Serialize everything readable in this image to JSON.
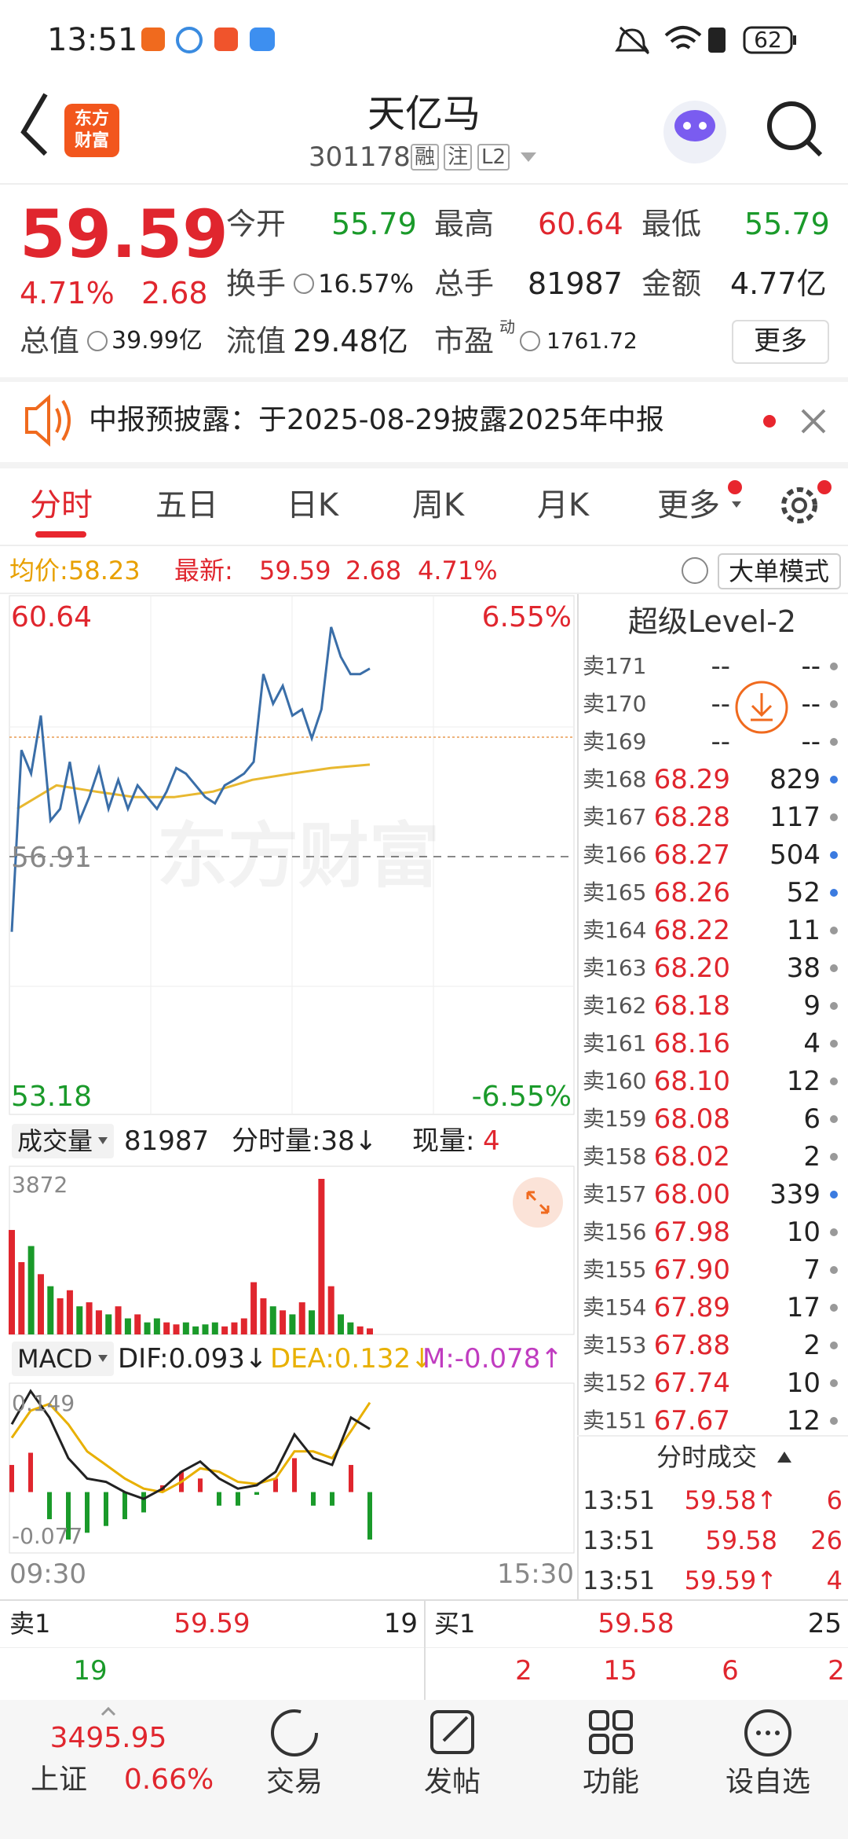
{
  "status_bar": {
    "time": "13:51",
    "battery": "62"
  },
  "header": {
    "logo": [
      "东方",
      "财富"
    ],
    "title": "天亿马",
    "code": "301178",
    "tags": [
      "融",
      "注",
      "L2"
    ]
  },
  "quote": {
    "price": "59.59",
    "change_pct": "4.71%",
    "change": "2.68",
    "fields": [
      {
        "label": "今开",
        "value": "55.79"
      },
      {
        "label": "最高",
        "value": "60.64"
      },
      {
        "label": "最低",
        "value": "55.79"
      },
      {
        "label": "换手",
        "value": "16.57%"
      },
      {
        "label": "总手",
        "value": "81987"
      },
      {
        "label": "金额",
        "value": "4.77亿"
      },
      {
        "label": "总值",
        "value": "39.99亿"
      },
      {
        "label": "流值",
        "value": "29.48亿"
      },
      {
        "label": "市盈",
        "sup": "动",
        "value": "1761.72"
      }
    ],
    "more": "更多"
  },
  "notice": {
    "text": "中报预披露：于2025-08-29披露2025年中报"
  },
  "tabs": [
    "分时",
    "五日",
    "日K",
    "周K",
    "月K",
    "更多"
  ],
  "info_bar": {
    "avg_label": "均价:",
    "avg": "58.23",
    "last_label": "最新:",
    "last": "59.59",
    "change": "2.68",
    "change_pct": "4.71%",
    "mode": "大单模式"
  },
  "intraday": {
    "ylim": [
      53.18,
      60.64
    ],
    "ref": 56.91,
    "pct_labels": [
      "-6.55%",
      "6.55%"
    ],
    "watermark": "东方财富",
    "price": [
      55.81,
      58.44,
      58.1,
      58.94,
      57.42,
      57.59,
      58.27,
      57.42,
      57.76,
      58.18,
      57.59,
      58.01,
      57.59,
      57.93,
      57.76,
      57.59,
      57.84,
      58.18,
      58.1,
      57.93,
      57.76,
      57.67,
      57.93,
      58.01,
      58.1,
      58.27,
      59.54,
      59.11,
      59.37,
      58.94,
      59.03,
      58.61,
      59.03,
      60.22,
      59.79,
      59.54,
      59.54,
      59.62
    ],
    "avg": [
      57.59,
      57.93,
      57.84,
      57.76,
      57.76,
      57.84,
      58.01,
      58.1,
      58.18,
      58.23
    ],
    "start": "09:30",
    "end": "15:30"
  },
  "volume": {
    "label": "成交量",
    "total": "81987",
    "minute": "分时量:38↓",
    "current_label": "现量:",
    "current": "4",
    "max": 3872,
    "values": [
      2600,
      1800,
      2200,
      1500,
      1200,
      900,
      1100,
      700,
      800,
      600,
      500,
      700,
      400,
      500,
      300,
      400,
      300,
      250,
      300,
      200,
      250,
      300,
      200,
      300,
      400,
      1300,
      900,
      700,
      600,
      500,
      800,
      600,
      3872,
      1200,
      500,
      300,
      200,
      150
    ]
  },
  "macd": {
    "label": "MACD",
    "dif_label": "DIF:0.093↓",
    "dea_label": "DEA:0.132↓",
    "m_label": "M:-0.078↑",
    "ylim": [
      -0.077,
      0.149
    ],
    "dif": [
      0.1,
      0.149,
      0.11,
      0.05,
      0.02,
      0.015,
      0.0,
      -0.01,
      0.005,
      0.03,
      0.045,
      0.02,
      0.005,
      0.01,
      0.03,
      0.085,
      0.05,
      0.04,
      0.11,
      0.093
    ],
    "dea": [
      0.08,
      0.12,
      0.13,
      0.1,
      0.06,
      0.04,
      0.02,
      0.005,
      0.0,
      0.015,
      0.035,
      0.03,
      0.015,
      0.012,
      0.02,
      0.06,
      0.06,
      0.05,
      0.09,
      0.132
    ],
    "bars": [
      0.04,
      0.058,
      -0.04,
      -0.07,
      -0.06,
      -0.05,
      -0.04,
      -0.03,
      0.01,
      0.03,
      0.02,
      -0.02,
      -0.02,
      -0.004,
      0.02,
      0.05,
      -0.02,
      -0.02,
      0.04,
      -0.07
    ]
  },
  "level2": {
    "title": "超级Level-2",
    "rows": [
      {
        "label": "卖171",
        "price": "--",
        "volume": "--",
        "dot": "#999999"
      },
      {
        "label": "卖170",
        "price": "--",
        "volume": "--",
        "dot": "#999999"
      },
      {
        "label": "卖169",
        "price": "--",
        "volume": "--",
        "dot": "#999999"
      },
      {
        "label": "卖168",
        "price": "68.29",
        "volume": "829",
        "dot": "#3b7be0"
      },
      {
        "label": "卖167",
        "price": "68.28",
        "volume": "117",
        "dot": "#999999"
      },
      {
        "label": "卖166",
        "price": "68.27",
        "volume": "504",
        "dot": "#3b7be0"
      },
      {
        "label": "卖165",
        "price": "68.26",
        "volume": "52",
        "dot": "#3b7be0"
      },
      {
        "label": "卖164",
        "price": "68.22",
        "volume": "11",
        "dot": "#999999"
      },
      {
        "label": "卖163",
        "price": "68.20",
        "volume": "38",
        "dot": "#999999"
      },
      {
        "label": "卖162",
        "price": "68.18",
        "volume": "9",
        "dot": "#999999"
      },
      {
        "label": "卖161",
        "price": "68.16",
        "volume": "4",
        "dot": "#999999"
      },
      {
        "label": "卖160",
        "price": "68.10",
        "volume": "12",
        "dot": "#999999"
      },
      {
        "label": "卖159",
        "price": "68.08",
        "volume": "6",
        "dot": "#999999"
      },
      {
        "label": "卖158",
        "price": "68.02",
        "volume": "2",
        "dot": "#999999"
      },
      {
        "label": "卖157",
        "price": "68.00",
        "volume": "339",
        "dot": "#3b7be0"
      },
      {
        "label": "卖156",
        "price": "67.98",
        "volume": "10",
        "dot": "#999999"
      },
      {
        "label": "卖155",
        "price": "67.90",
        "volume": "7",
        "dot": "#999999"
      },
      {
        "label": "卖154",
        "price": "67.89",
        "volume": "17",
        "dot": "#999999"
      },
      {
        "label": "卖153",
        "price": "67.88",
        "volume": "2",
        "dot": "#999999"
      },
      {
        "label": "卖152",
        "price": "67.74",
        "volume": "10",
        "dot": "#999999"
      },
      {
        "label": "卖151",
        "price": "67.67",
        "volume": "12",
        "dot": "#999999"
      }
    ]
  },
  "trades": {
    "title": "分时成交",
    "rows": [
      {
        "time": "13:51",
        "price": "59.58↑",
        "volume": "6"
      },
      {
        "time": "13:51",
        "price": "59.58",
        "volume": "26"
      },
      {
        "time": "13:51",
        "price": "59.59↑",
        "volume": "4"
      }
    ]
  },
  "order_book": {
    "ask": {
      "label": "卖1",
      "price": "59.59",
      "volume": "19"
    },
    "ask_detail": [
      "19"
    ],
    "bid": {
      "label": "买1",
      "price": "59.58",
      "volume": "25"
    },
    "bid_detail": [
      "2",
      "15",
      "6",
      "2"
    ]
  },
  "nav": {
    "index": {
      "value": "3495.95",
      "name": "上证",
      "change": "0.66%"
    },
    "items": [
      "交易",
      "发帖",
      "功能",
      "设自选"
    ]
  }
}
